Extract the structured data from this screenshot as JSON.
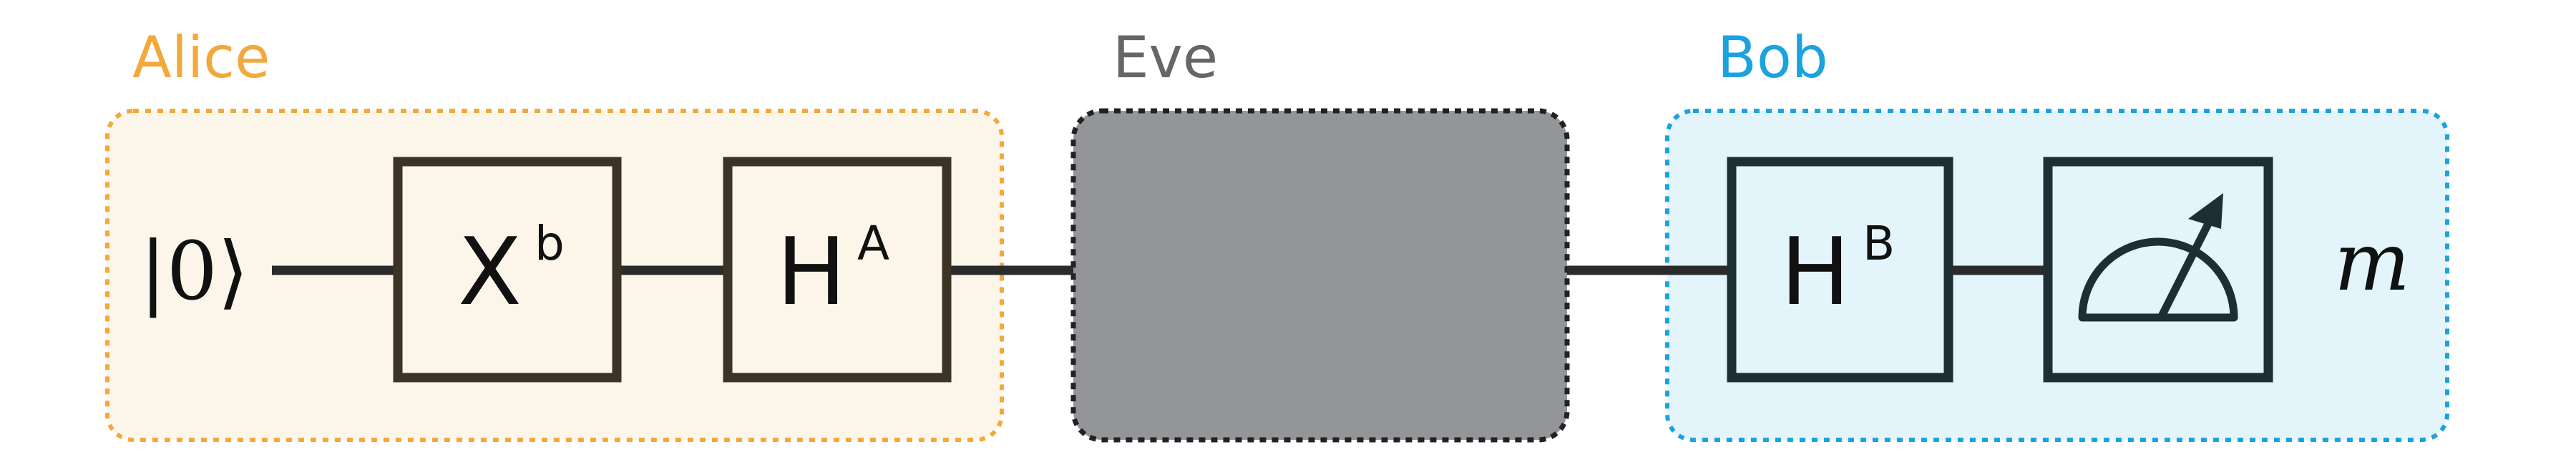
{
  "parties": {
    "alice": {
      "label": "Alice",
      "color": "#F2A93B",
      "fill": "#FCF6EA"
    },
    "eve": {
      "label": "Eve",
      "color": "#666666",
      "fill": "#939598"
    },
    "bob": {
      "label": "Bob",
      "color": "#1AA3DE",
      "fill": "#E3F4FB"
    }
  },
  "input": {
    "ket": "|0⟩"
  },
  "gates": {
    "x": {
      "base": "X",
      "sup": "b"
    },
    "ha": {
      "base": "H",
      "sup": "A"
    },
    "hb": {
      "base": "H",
      "sup": "B"
    },
    "measure": {
      "icon": "meter-icon"
    }
  },
  "output": {
    "symbol": "m"
  },
  "colors": {
    "wire": "#2B2B2B",
    "gate_alice": "#3A3326",
    "gate_bob": "#1F2E35"
  }
}
